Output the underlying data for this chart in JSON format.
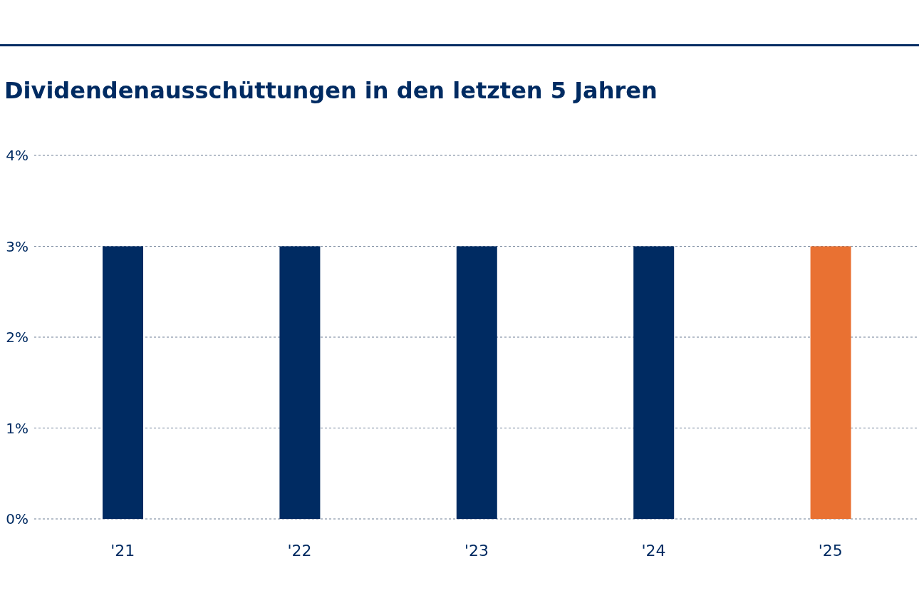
{
  "chart_data": {
    "type": "bar",
    "title": "Dividendenausschüttungen in den letzten 5 Jahren",
    "categories": [
      "'21",
      "'22",
      "'23",
      "'24",
      "'25"
    ],
    "values": [
      3,
      3,
      3,
      3,
      3
    ],
    "colors": [
      "#002b62",
      "#002b62",
      "#002b62",
      "#002b62",
      "#e97132"
    ],
    "ylim": [
      0,
      4
    ],
    "yticks": [
      {
        "value": 0,
        "label": "0%"
      },
      {
        "value": 1,
        "label": "1%"
      },
      {
        "value": 2,
        "label": "2%"
      },
      {
        "value": 3,
        "label": "3%"
      },
      {
        "value": 4,
        "label": "4%"
      }
    ],
    "grid": "y"
  }
}
